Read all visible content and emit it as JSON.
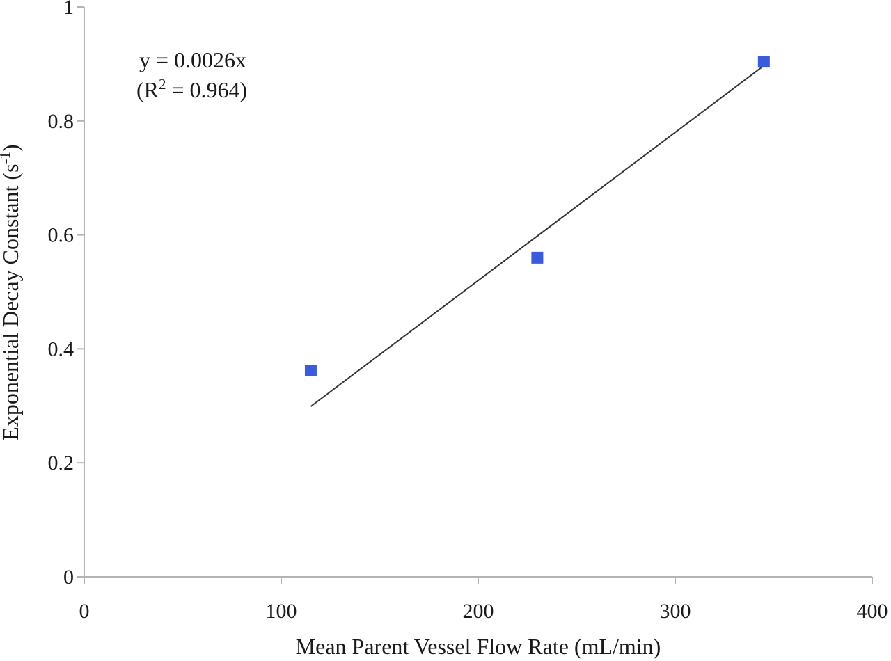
{
  "chart_data": {
    "type": "scatter",
    "xlabel": "Mean Parent Vessel Flow Rate (mL/min)",
    "ylabel_main": "Exponential Decay Constant (s",
    "ylabel_sup": "-1",
    "ylabel_end": ")",
    "xlim": [
      0,
      400
    ],
    "ylim": [
      0,
      1
    ],
    "x_ticks": [
      0,
      100,
      200,
      300,
      400
    ],
    "x_tick_labels": [
      "0",
      "100",
      "200",
      "300",
      "400"
    ],
    "y_ticks": [
      0,
      0.2,
      0.4,
      0.6,
      0.8,
      1
    ],
    "y_tick_labels": [
      "0",
      "0.2",
      "0.4",
      "0.6",
      "0.8",
      "1"
    ],
    "grid": false,
    "series": [
      {
        "marker": "square",
        "color": "#3b5bdb",
        "points": [
          {
            "x": 115,
            "y": 0.362
          },
          {
            "x": 230,
            "y": 0.56
          },
          {
            "x": 345,
            "y": 0.904
          }
        ]
      }
    ],
    "trendline": {
      "slope": 0.0026,
      "intercept": 0,
      "x_range": [
        115,
        345
      ],
      "color": "#333333"
    },
    "annotation": {
      "equation": "y = 0.0026x",
      "r2_open": "(R",
      "r2_sup": "2",
      "r2_rest": " = 0.964)"
    }
  }
}
